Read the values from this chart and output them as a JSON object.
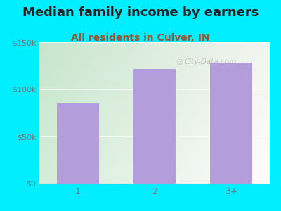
{
  "title": "Median family income by earners",
  "subtitle": "All residents in Culver, IN",
  "categories": [
    "1",
    "2",
    "3+"
  ],
  "values": [
    85000,
    122000,
    128000
  ],
  "bar_color": "#b39ddb",
  "background_outer": "#00eeff",
  "ylim": [
    0,
    150000
  ],
  "yticks": [
    0,
    50000,
    100000,
    150000
  ],
  "ytick_labels": [
    "$0",
    "$50k",
    "$100k",
    "$150k"
  ],
  "title_fontsize": 13,
  "subtitle_fontsize": 10,
  "title_color": "#222222",
  "subtitle_color": "#a0522d",
  "tick_color": "#777777",
  "watermark": "City-Data.com",
  "gradient_left": "#d4edda",
  "gradient_right": "#f8fff8",
  "bar_width": 0.55
}
